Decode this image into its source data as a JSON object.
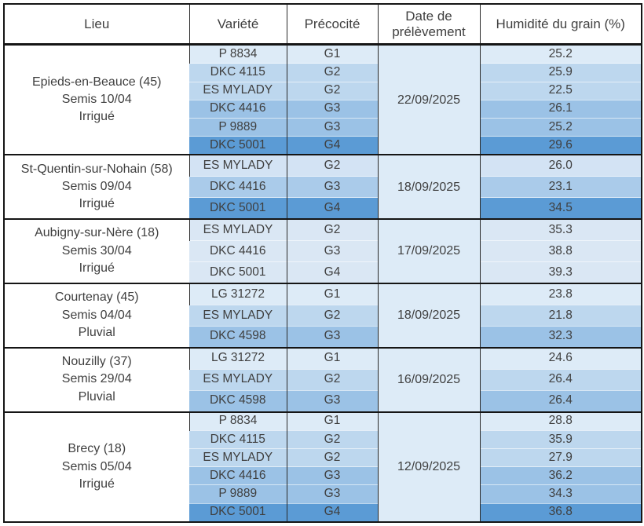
{
  "table": {
    "headers": [
      "Lieu",
      "Variété",
      "Précocité",
      "Date de prélèvement",
      "Humidité du grain (%)"
    ],
    "palette": {
      "tint_g1": "#DDEBF7",
      "tint_g2": "#BDD7EE",
      "tint_g3": "#9BC2E6",
      "tint_g4": "#5B9BD5",
      "date_cell": "#DDEBF7",
      "border_dark": "#151515"
    },
    "groups": [
      {
        "location": "Epieds-en-Beauce (45)",
        "sowing": "Semis 10/04",
        "regime": "Irrigué",
        "date": "22/09/2025",
        "date_color": "#DDEBF7",
        "rows": [
          {
            "variety": "P 8834",
            "precocity": "G1",
            "humidity": "25.2",
            "color": "#DDEBF7"
          },
          {
            "variety": "DKC 4115",
            "precocity": "G2",
            "humidity": "25.9",
            "color": "#BDD7EE"
          },
          {
            "variety": "ES MYLADY",
            "precocity": "G2",
            "humidity": "22.5",
            "color": "#BDD7EE"
          },
          {
            "variety": "DKC 4416",
            "precocity": "G3",
            "humidity": "26.1",
            "color": "#9BC2E6"
          },
          {
            "variety": "P 9889",
            "precocity": "G3",
            "humidity": "25.2",
            "color": "#9BC2E6"
          },
          {
            "variety": "DKC 5001",
            "precocity": "G4",
            "humidity": "29.6",
            "color": "#5B9BD5"
          }
        ]
      },
      {
        "location": "St-Quentin-sur-Nohain (58)",
        "sowing": "Semis 09/04",
        "regime": "Irrigué",
        "date": "18/09/2025",
        "date_color": "#DDEBF7",
        "rows": [
          {
            "variety": "ES MYLADY",
            "precocity": "G2",
            "humidity": "26.0",
            "color": "#D3E3F4"
          },
          {
            "variety": "DKC 4416",
            "precocity": "G3",
            "humidity": "23.1",
            "color": "#AACBEA"
          },
          {
            "variety": "DKC 5001",
            "precocity": "G4",
            "humidity": "34.5",
            "color": "#5B9BD5"
          }
        ]
      },
      {
        "location": "Aubigny-sur-Nère (18)",
        "sowing": "Semis 30/04",
        "regime": "Irrigué",
        "date": "17/09/2025",
        "date_color": "#DDEBF7",
        "rows": [
          {
            "variety": "ES MYLADY",
            "precocity": "G2",
            "humidity": "35.3",
            "color": "#DAE7F4"
          },
          {
            "variety": "DKC 4416",
            "precocity": "G3",
            "humidity": "38.8",
            "color": "#DAE7F4"
          },
          {
            "variety": "DKC 5001",
            "precocity": "G4",
            "humidity": "39.3",
            "color": "#DAE7F4"
          }
        ]
      },
      {
        "location": "Courtenay (45)",
        "sowing": "Semis 04/04",
        "regime": "Pluvial",
        "date": "18/09/2025",
        "date_color": "#DDEBF7",
        "rows": [
          {
            "variety": "LG 31272",
            "precocity": "G1",
            "humidity": "23.8",
            "color": "#DDEBF7"
          },
          {
            "variety": "ES MYLADY",
            "precocity": "G2",
            "humidity": "21.8",
            "color": "#BDD7EE"
          },
          {
            "variety": "DKC 4598",
            "precocity": "G3",
            "humidity": "32.3",
            "color": "#9BC2E6"
          }
        ]
      },
      {
        "location": "Nouzilly (37)",
        "sowing": "Semis 29/04",
        "regime": "Pluvial",
        "date": "16/09/2025",
        "date_color": "#DDEBF7",
        "rows": [
          {
            "variety": "LG 31272",
            "precocity": "G1",
            "humidity": "24.6",
            "color": "#DDEBF7"
          },
          {
            "variety": "ES MYLADY",
            "precocity": "G2",
            "humidity": "26.4",
            "color": "#BDD7EE"
          },
          {
            "variety": "DKC 4598",
            "precocity": "G3",
            "humidity": "26.4",
            "color": "#9BC2E6"
          }
        ]
      },
      {
        "location": "Brecy (18)",
        "sowing": "Semis 05/04",
        "regime": "Irrigué",
        "date": "12/09/2025",
        "date_color": "#DDEBF7",
        "rows": [
          {
            "variety": "P 8834",
            "precocity": "G1",
            "humidity": "28.8",
            "color": "#DDEBF7"
          },
          {
            "variety": "DKC 4115",
            "precocity": "G2",
            "humidity": "35.9",
            "color": "#BDD7EE"
          },
          {
            "variety": "ES MYLADY",
            "precocity": "G2",
            "humidity": "27.9",
            "color": "#BDD7EE"
          },
          {
            "variety": "DKC 4416",
            "precocity": "G3",
            "humidity": "36.2",
            "color": "#9BC2E6"
          },
          {
            "variety": "P 9889",
            "precocity": "G3",
            "humidity": "34.3",
            "color": "#9BC2E6"
          },
          {
            "variety": "DKC 5001",
            "precocity": "G4",
            "humidity": "36.8",
            "color": "#5B9BD5"
          }
        ]
      }
    ]
  },
  "chart_data": {
    "type": "table",
    "columns": [
      "Lieu",
      "Variété",
      "Précocité",
      "Date de prélèvement",
      "Humidité du grain (%)"
    ],
    "rows": [
      [
        "Epieds-en-Beauce (45) Semis 10/04 Irrigué",
        "P 8834",
        "G1",
        "22/09/2025",
        25.2
      ],
      [
        "Epieds-en-Beauce (45) Semis 10/04 Irrigué",
        "DKC 4115",
        "G2",
        "22/09/2025",
        25.9
      ],
      [
        "Epieds-en-Beauce (45) Semis 10/04 Irrigué",
        "ES MYLADY",
        "G2",
        "22/09/2025",
        22.5
      ],
      [
        "Epieds-en-Beauce (45) Semis 10/04 Irrigué",
        "DKC 4416",
        "G3",
        "22/09/2025",
        26.1
      ],
      [
        "Epieds-en-Beauce (45) Semis 10/04 Irrigué",
        "P 9889",
        "G3",
        "22/09/2025",
        25.2
      ],
      [
        "Epieds-en-Beauce (45) Semis 10/04 Irrigué",
        "DKC 5001",
        "G4",
        "22/09/2025",
        29.6
      ],
      [
        "St-Quentin-sur-Nohain (58) Semis 09/04 Irrigué",
        "ES MYLADY",
        "G2",
        "18/09/2025",
        26.0
      ],
      [
        "St-Quentin-sur-Nohain (58) Semis 09/04 Irrigué",
        "DKC 4416",
        "G3",
        "18/09/2025",
        23.1
      ],
      [
        "St-Quentin-sur-Nohain (58) Semis 09/04 Irrigué",
        "DKC 5001",
        "G4",
        "18/09/2025",
        34.5
      ],
      [
        "Aubigny-sur-Nère (18) Semis 30/04 Irrigué",
        "ES MYLADY",
        "G2",
        "17/09/2025",
        35.3
      ],
      [
        "Aubigny-sur-Nère (18) Semis 30/04 Irrigué",
        "DKC 4416",
        "G3",
        "17/09/2025",
        38.8
      ],
      [
        "Aubigny-sur-Nère (18) Semis 30/04 Irrigué",
        "DKC 5001",
        "G4",
        "17/09/2025",
        39.3
      ],
      [
        "Courtenay (45) Semis 04/04 Pluvial",
        "LG 31272",
        "G1",
        "18/09/2025",
        23.8
      ],
      [
        "Courtenay (45) Semis 04/04 Pluvial",
        "ES MYLADY",
        "G2",
        "18/09/2025",
        21.8
      ],
      [
        "Courtenay (45) Semis 04/04 Pluvial",
        "DKC 4598",
        "G3",
        "18/09/2025",
        32.3
      ],
      [
        "Nouzilly (37) Semis 29/04 Pluvial",
        "LG 31272",
        "G1",
        "16/09/2025",
        24.6
      ],
      [
        "Nouzilly (37) Semis 29/04 Pluvial",
        "ES MYLADY",
        "G2",
        "16/09/2025",
        26.4
      ],
      [
        "Nouzilly (37) Semis 29/04 Pluvial",
        "DKC 4598",
        "G3",
        "16/09/2025",
        26.4
      ],
      [
        "Brecy (18) Semis 05/04 Irrigué",
        "P 8834",
        "G1",
        "12/09/2025",
        28.8
      ],
      [
        "Brecy (18) Semis 05/04 Irrigué",
        "DKC 4115",
        "G2",
        "12/09/2025",
        35.9
      ],
      [
        "Brecy (18) Semis 05/04 Irrigué",
        "ES MYLADY",
        "G2",
        "12/09/2025",
        27.9
      ],
      [
        "Brecy (18) Semis 05/04 Irrigué",
        "DKC 4416",
        "G3",
        "12/09/2025",
        36.2
      ],
      [
        "Brecy (18) Semis 05/04 Irrigué",
        "P 9889",
        "G3",
        "12/09/2025",
        34.3
      ],
      [
        "Brecy (18) Semis 05/04 Irrigué",
        "DKC 5001",
        "G4",
        "12/09/2025",
        36.8
      ]
    ]
  }
}
